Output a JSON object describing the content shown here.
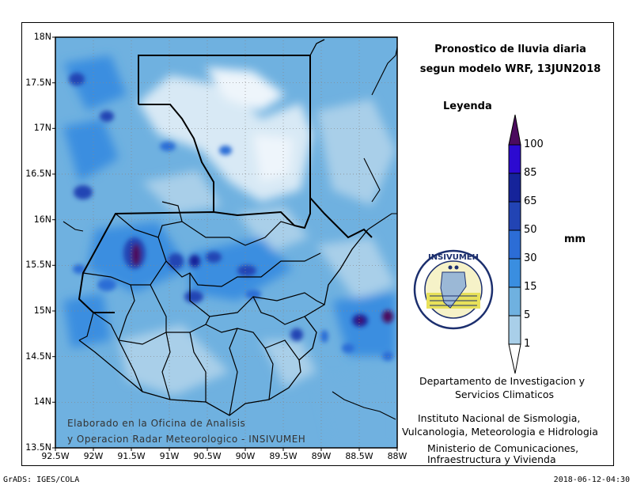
{
  "title": {
    "line1": "Pronostico de lluvia diaria",
    "line2": "segun modelo WRF,    13JUN2018"
  },
  "axes": {
    "lat_labels": [
      "18N",
      "17.5N",
      "17N",
      "16.5N",
      "16N",
      "15.5N",
      "15N",
      "14.5N",
      "14N",
      "13.5N"
    ],
    "lon_labels": [
      "92.5W",
      "92W",
      "91.5W",
      "91W",
      "90.5W",
      "90W",
      "89.5W",
      "89W",
      "88.5W",
      "88W"
    ],
    "lon_range": [
      -92.5,
      -88.0
    ],
    "lat_range": [
      13.5,
      18.0
    ],
    "grid": true
  },
  "legend": {
    "title": "Leyenda",
    "unit": "mm",
    "levels": [
      "1",
      "5",
      "15",
      "30",
      "50",
      "65",
      "85",
      "100"
    ],
    "colors": [
      "#d8e9f5",
      "#a9cfe9",
      "#6fb1e0",
      "#3a8ee0",
      "#2c6dd6",
      "#2244b4",
      "#15239a",
      "#2c0ad0",
      "#4b0b5e"
    ],
    "triangle_top_color": "#4b0b5e"
  },
  "watermark": {
    "line1": "Elaborado en la Oficina de Analisis",
    "line2": "y Operacion Radar Meteorologico - INSIVUMEH"
  },
  "credits": {
    "dept_line1": "Departamento de Investigacion y",
    "dept_line2": "Servicios Climaticos",
    "inst_line1": "Instituto Nacional de Sismologia,",
    "inst_line2": "Vulcanologia, Meteorologia e Hidrologia",
    "min_line1": "Ministerio de Comunicaciones,",
    "min_line2": "Infraestructura y Vivienda"
  },
  "logo": {
    "text": "INSIVUMEH"
  },
  "footer": {
    "left": "GrADS: IGES/COLA",
    "right": "2018-06-12-04:30"
  }
}
